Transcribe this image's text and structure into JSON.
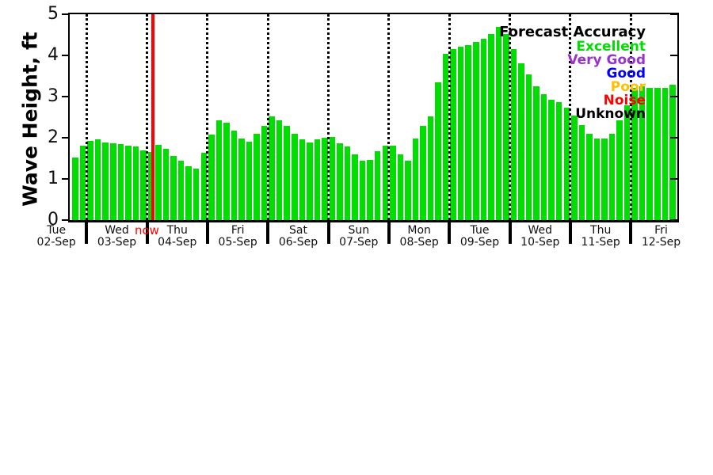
{
  "now": {
    "label": "now"
  },
  "legend": {
    "title": "Forecast Accuracy",
    "title_color": "#000000",
    "entries": [
      {
        "label": "Excellent",
        "color": "#00dd00"
      },
      {
        "label": "Very Good",
        "color": "#9933cc"
      },
      {
        "label": "Good",
        "color": "#0000ff"
      },
      {
        "label": "Poor",
        "color": "#ffbf00"
      },
      {
        "label": "Noise",
        "color": "#ff0000"
      },
      {
        "label": "Unknown",
        "color": "#000000"
      }
    ]
  },
  "chart_data": {
    "type": "bar",
    "title": "",
    "ylabel": "Wave Height, ft",
    "xlabel": "",
    "ylim": [
      0,
      5
    ],
    "yticks": [
      0,
      1,
      2,
      3,
      4,
      5
    ],
    "bar_color": "#00dd00",
    "grid": "vertical-dotted-at-day-boundaries",
    "legend_position": "top-right-inside",
    "now_marker": {
      "color": "#ff0000",
      "between_days": [
        "03-Sep",
        "04-Sep"
      ]
    },
    "days": [
      {
        "day": "Tue",
        "date": "02-Sep",
        "values": [
          1.52,
          1.8
        ]
      },
      {
        "day": "Wed",
        "date": "03-Sep",
        "values": [
          1.92,
          1.96,
          1.88,
          1.86,
          1.84,
          1.81,
          1.78,
          1.7
        ]
      },
      {
        "day": "Thu",
        "date": "04-Sep",
        "values": [
          1.65,
          1.83,
          1.73,
          1.56,
          1.44,
          1.3,
          1.26,
          1.63
        ]
      },
      {
        "day": "Fri",
        "date": "05-Sep",
        "values": [
          2.08,
          2.42,
          2.37,
          2.18,
          1.99,
          1.9,
          2.1,
          2.29
        ]
      },
      {
        "day": "Sat",
        "date": "06-Sep",
        "values": [
          2.52,
          2.43,
          2.28,
          2.1,
          1.96,
          1.88,
          1.96,
          2.01
        ]
      },
      {
        "day": "Sun",
        "date": "07-Sep",
        "values": [
          2.02,
          1.87,
          1.78,
          1.6,
          1.44,
          1.47,
          1.67,
          1.8
        ]
      },
      {
        "day": "Mon",
        "date": "08-Sep",
        "values": [
          1.8,
          1.59,
          1.45,
          1.99,
          2.28,
          2.52,
          3.34,
          4.03
        ]
      },
      {
        "day": "Tue",
        "date": "09-Sep",
        "values": [
          4.16,
          4.21,
          4.25,
          4.33,
          4.4,
          4.52,
          4.7,
          4.52
        ]
      },
      {
        "day": "Wed",
        "date": "10-Sep",
        "values": [
          4.16,
          3.81,
          3.53,
          3.26,
          3.06,
          2.93,
          2.87,
          2.73
        ]
      },
      {
        "day": "Thu",
        "date": "11-Sep",
        "values": [
          2.54,
          2.31,
          2.1,
          1.99,
          1.98,
          2.1,
          2.42,
          2.79
        ]
      },
      {
        "day": "Fri",
        "date": "12-Sep",
        "values": [
          3.22,
          3.26,
          3.22,
          3.22,
          3.22,
          3.28
        ]
      }
    ]
  }
}
